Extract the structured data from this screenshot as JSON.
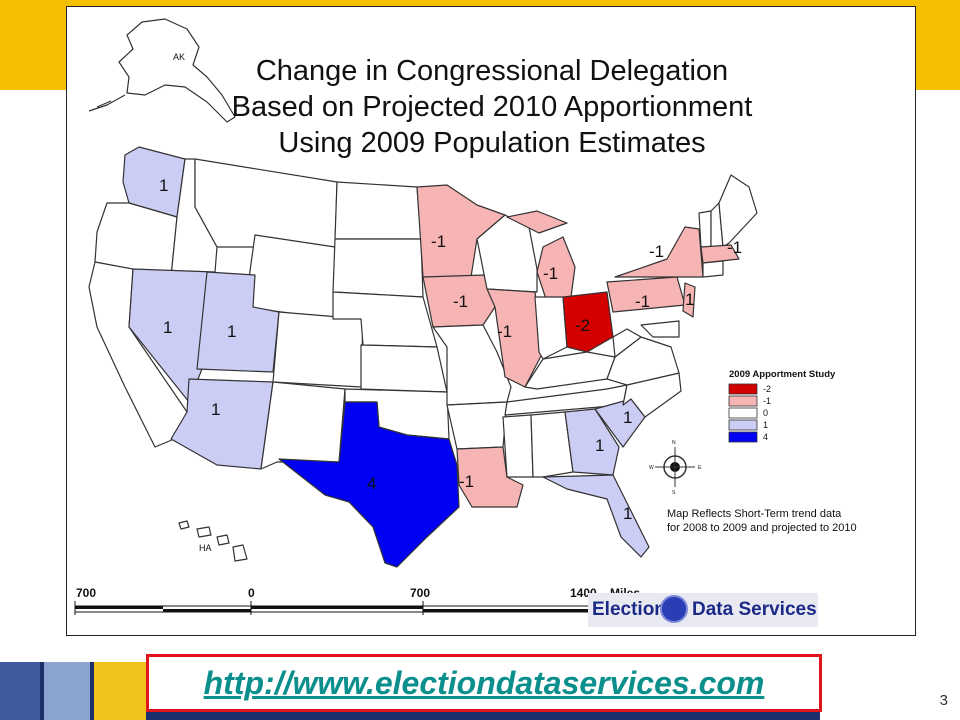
{
  "title_lines": [
    "Change in Congressional Delegation",
    "Based on Projected 2010 Apportionment",
    "Using 2009 Population Estimates"
  ],
  "colors": {
    "-2": "#d40000",
    "-1": "#f7b4b4",
    "0": "#ffffff",
    "1": "#cccdf5",
    "4": "#0000f2",
    "top_bar": "#f5c000",
    "bottom_bar": "#1c2f6b",
    "url": "#0a8f8c",
    "url_border": "#e2141b"
  },
  "state_labels": {
    "WA": "1",
    "OR": "1",
    "NV": "1",
    "UT": "1",
    "AZ": "1",
    "TX": "4",
    "MN": "-1",
    "IA": "-1",
    "IL": "-1",
    "MI": "-1",
    "OH": "-2",
    "NY": "-1",
    "PA": "-1",
    "NJ": "1",
    "MA": "-1",
    "LA": "-1",
    "GA": "1",
    "SC": "1",
    "FL": "1"
  },
  "inset_labels": {
    "alaska": "AK",
    "hawaii": "HA"
  },
  "legend": {
    "title": "2009 Apportment Study",
    "items": [
      {
        "value": "-2",
        "color": "#d40000"
      },
      {
        "value": "-1",
        "color": "#f7b4b4"
      },
      {
        "value": "0",
        "color": "#ffffff"
      },
      {
        "value": "1",
        "color": "#cccdf5"
      },
      {
        "value": "4",
        "color": "#0000f2"
      }
    ]
  },
  "compass": {
    "n": "N",
    "s": "S",
    "e": "E",
    "w": "W"
  },
  "note_lines": [
    "Map Reflects Short-Term trend data",
    "for 2008 to 2009 and projected to 2010"
  ],
  "scale": {
    "ticks": [
      "700",
      "0",
      "700",
      "1400"
    ],
    "unit": "Miles"
  },
  "logo": {
    "word1": "Election",
    "word2": "Data Services"
  },
  "url": "http://www.electiondataservices.com",
  "page_number": "3"
}
